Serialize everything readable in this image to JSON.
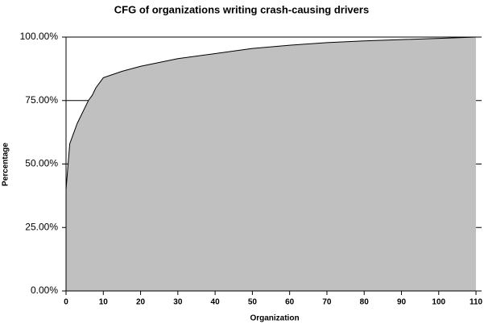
{
  "chart_data": {
    "type": "area",
    "title": "CFG of organizations writing crash-causing drivers",
    "x_label": "Organization",
    "y_label": "Percentage",
    "series": [
      {
        "name": "Percentage",
        "color": "#c0c0c0",
        "x": [
          0,
          1,
          2,
          3,
          4,
          5,
          6,
          7,
          8,
          9,
          10,
          12,
          15,
          20,
          25,
          30,
          40,
          50,
          60,
          70,
          80,
          90,
          100,
          110
        ],
        "values": [
          40,
          58,
          62,
          66,
          69,
          72,
          75,
          77,
          80,
          82,
          84,
          85,
          86.5,
          88.5,
          90,
          91.5,
          93.5,
          95.5,
          96.8,
          97.8,
          98.5,
          99,
          99.5,
          100
        ]
      }
    ],
    "xlim": [
      0,
      111.5
    ],
    "xticks": [
      0,
      10,
      20,
      30,
      40,
      50,
      60,
      70,
      80,
      90,
      100,
      110
    ],
    "ylim": [
      0,
      100
    ],
    "yticks": [
      {
        "value": 0,
        "label": "0.00%"
      },
      {
        "value": 25,
        "label": "25.00%"
      },
      {
        "value": 50,
        "label": "50.00%"
      },
      {
        "value": 75,
        "label": "75.00%"
      },
      {
        "value": 100,
        "label": "100.00%"
      }
    ],
    "grid": true
  }
}
